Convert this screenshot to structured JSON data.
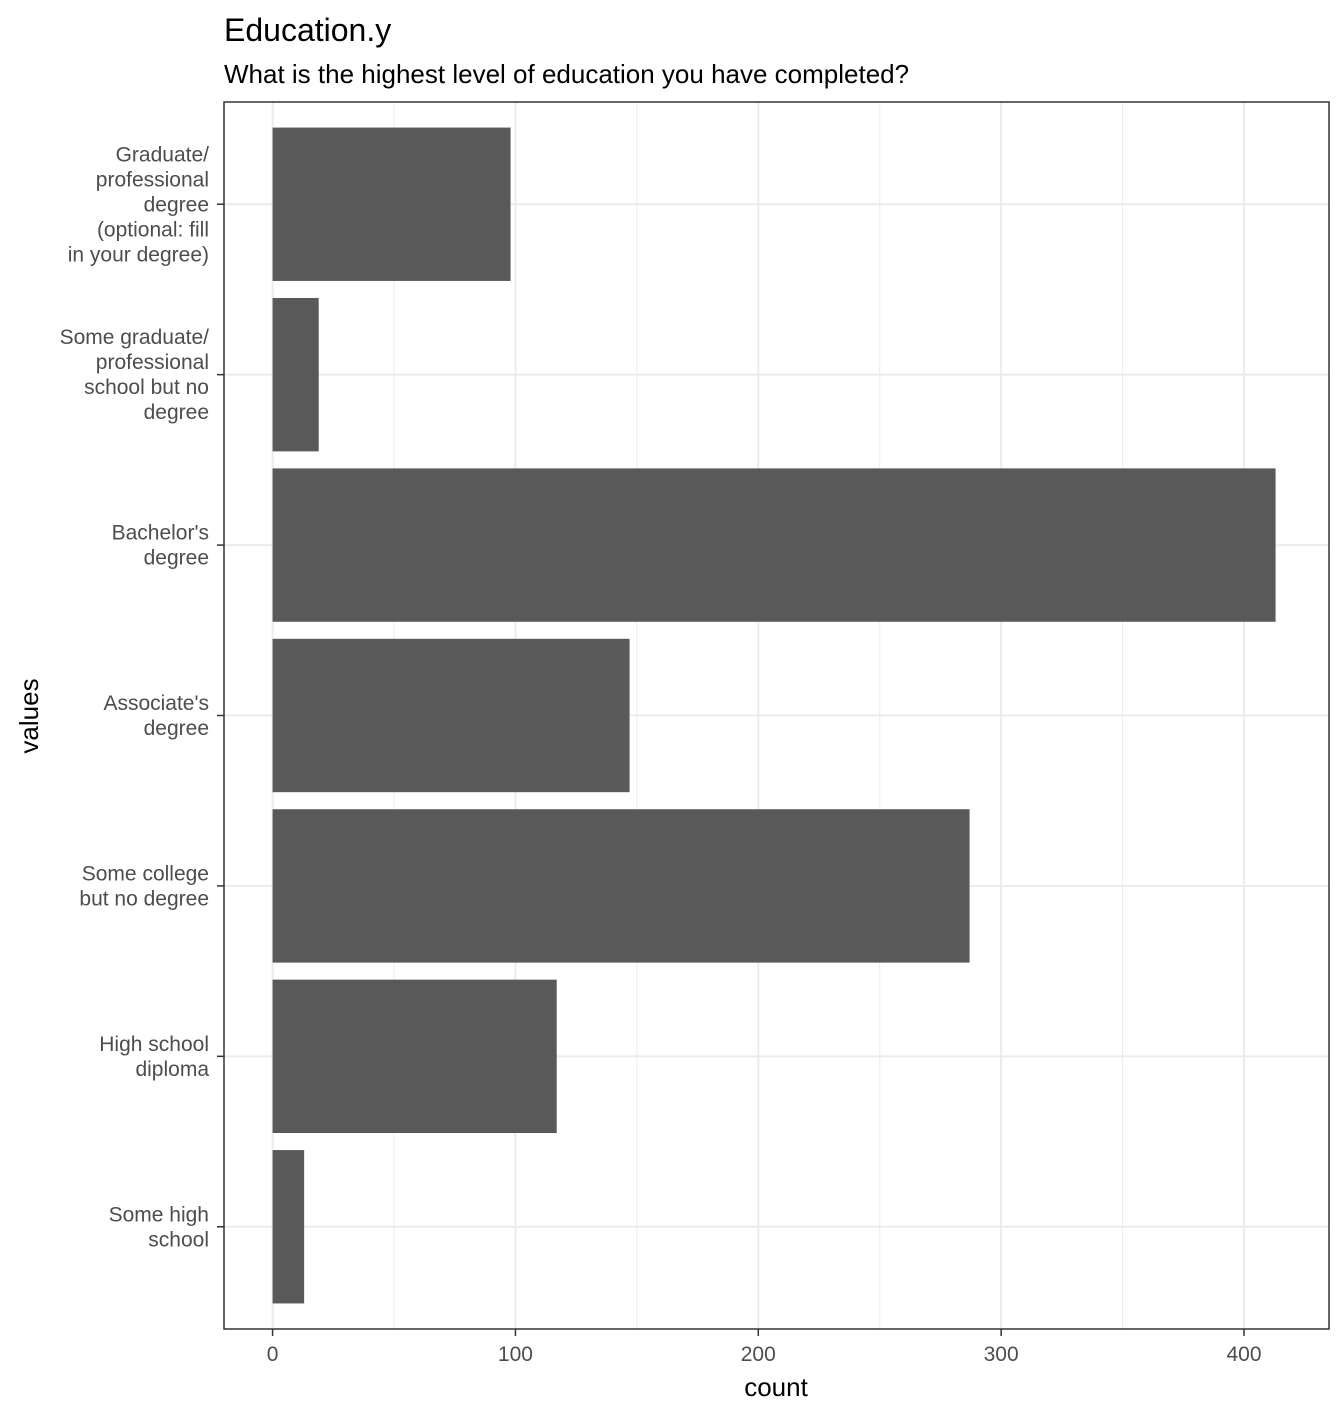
{
  "chart_data": {
    "type": "bar",
    "orientation": "horizontal",
    "title": "Education.y",
    "subtitle": "What is the highest level of education you have completed?",
    "xlabel": "count",
    "ylabel": "values",
    "categories": [
      [
        "Graduate/",
        "professional",
        "degree",
        "(optional: fill",
        "in your degree)"
      ],
      [
        "Some graduate/",
        "professional",
        "school but no",
        "degree"
      ],
      [
        "Bachelor's",
        "degree"
      ],
      [
        "Associate's",
        "degree"
      ],
      [
        "Some college",
        "but no degree"
      ],
      [
        "High school",
        "diploma"
      ],
      [
        "Some high",
        "school"
      ]
    ],
    "values": [
      98,
      19,
      413,
      147,
      287,
      117,
      13
    ],
    "xlim": [
      -20,
      435
    ],
    "x_ticks": [
      0,
      100,
      200,
      300,
      400
    ],
    "x_minor_ticks": [
      50,
      150,
      250,
      350
    ],
    "grid": true,
    "colors": {
      "bar": "#595959",
      "grid": "#ebebeb",
      "panel_border": "#333333",
      "tick_text": "#4d4d4d"
    }
  }
}
